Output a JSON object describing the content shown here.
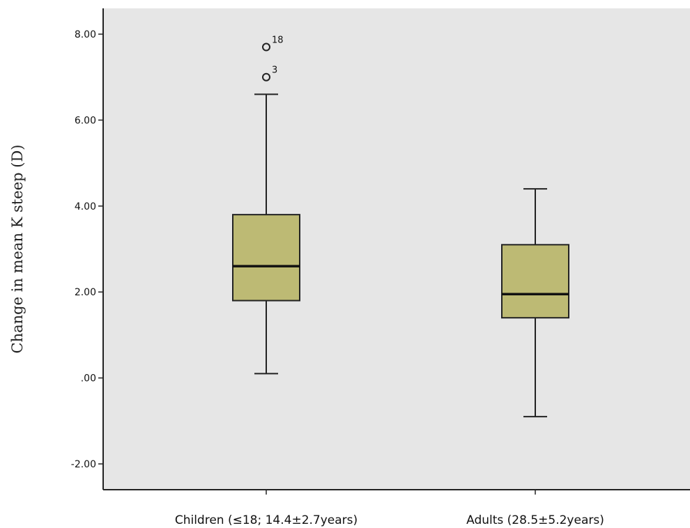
{
  "chart_data": {
    "type": "boxplot",
    "title": "",
    "xlabel": "",
    "ylabel": "Change in mean K steep (D)",
    "ylim": [
      -2.6,
      8.6
    ],
    "yticks": [
      {
        "value": -2,
        "label": "-2.00"
      },
      {
        "value": 0,
        "label": ".00"
      },
      {
        "value": 2,
        "label": "2.00"
      },
      {
        "value": 4,
        "label": "4.00"
      },
      {
        "value": 6,
        "label": "6.00"
      },
      {
        "value": 8,
        "label": "8.00"
      }
    ],
    "categories": [
      "Children (≤18; 14.4±2.7years)",
      "Adults (28.5±5.2years)"
    ],
    "boxes": [
      {
        "category": "Children (≤18; 14.4±2.7years)",
        "whisker_low": 0.1,
        "q1": 1.8,
        "median": 2.6,
        "q3": 3.8,
        "whisker_high": 6.6,
        "outliers": [
          {
            "value": 7.7,
            "label": "18"
          },
          {
            "value": 7.0,
            "label": "3"
          }
        ]
      },
      {
        "category": "Adults (28.5±5.2years)",
        "whisker_low": -0.9,
        "q1": 1.4,
        "median": 1.95,
        "q3": 3.1,
        "whisker_high": 4.4,
        "outliers": []
      }
    ],
    "colors": {
      "box_fill": "#bdba74",
      "plot_background": "#e6e6e6",
      "stroke": "#222222"
    },
    "grid": false
  }
}
